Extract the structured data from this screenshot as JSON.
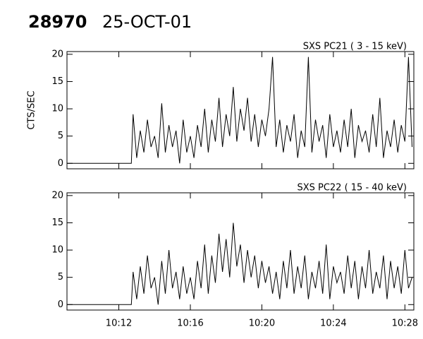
{
  "header": {
    "id": "28970",
    "date": "25-OCT-01"
  },
  "chart_data": [
    {
      "type": "line",
      "label": "SXS PC21  (  3 - 15 keV)",
      "ylabel": "CTS/SEC",
      "xlim": [
        609.1,
        628.5
      ],
      "xticks": [
        612,
        616,
        620,
        624,
        628
      ],
      "ylim": [
        -1,
        20.5
      ],
      "yticks": [
        0,
        5,
        10,
        15,
        20
      ],
      "series": [
        {
          "color": "#000000",
          "x": [
            609.1,
            612.7,
            612.8,
            613,
            613.2,
            613.4,
            613.6,
            613.8,
            614,
            614.2,
            614.4,
            614.6,
            614.8,
            615,
            615.2,
            615.4,
            615.6,
            615.8,
            616,
            616.2,
            616.4,
            616.6,
            616.8,
            617,
            617.2,
            617.4,
            617.6,
            617.8,
            618,
            618.2,
            618.4,
            618.6,
            618.8,
            619,
            619.2,
            619.4,
            619.6,
            619.8,
            620,
            620.2,
            620.4,
            620.6,
            620.8,
            621,
            621.2,
            621.4,
            621.6,
            621.8,
            622,
            622.2,
            622.4,
            622.6,
            622.8,
            623,
            623.2,
            623.4,
            623.6,
            623.8,
            624,
            624.2,
            624.4,
            624.6,
            624.8,
            625,
            625.2,
            625.4,
            625.6,
            625.8,
            626,
            626.2,
            626.4,
            626.6,
            626.8,
            627,
            627.2,
            627.4,
            627.6,
            627.8,
            628,
            628.2,
            628.4
          ],
          "values": [
            0,
            0,
            9,
            1,
            6,
            2,
            8,
            3,
            5,
            1,
            11,
            2,
            7,
            3,
            6,
            0,
            8,
            2,
            5,
            1,
            7,
            3,
            10,
            2,
            8,
            4,
            12,
            3,
            9,
            5,
            14,
            4,
            10,
            6,
            12,
            4,
            9,
            3,
            8,
            5,
            10,
            19.5,
            3,
            8,
            2,
            7,
            4,
            9,
            1,
            6,
            3,
            19.5,
            2,
            8,
            4,
            7,
            1,
            9,
            3,
            6,
            2,
            8,
            3,
            10,
            1,
            7,
            4,
            6,
            2,
            9,
            3,
            12,
            1,
            6,
            3,
            8,
            2,
            7,
            4,
            19.5,
            3
          ]
        }
      ]
    },
    {
      "type": "line",
      "label": "SXS PC22  ( 15 - 40 keV)",
      "xlim": [
        609.1,
        628.5
      ],
      "xticks": [
        {
          "value": 612,
          "label": "10:12"
        },
        {
          "value": 616,
          "label": "10:16"
        },
        {
          "value": 620,
          "label": "10:20"
        },
        {
          "value": 624,
          "label": "10:24"
        },
        {
          "value": 628,
          "label": "10:28"
        }
      ],
      "ylim": [
        -1,
        20.5
      ],
      "yticks": [
        0,
        5,
        10,
        15,
        20
      ],
      "series": [
        {
          "color": "#000000",
          "x": [
            609.1,
            612.7,
            612.8,
            613,
            613.2,
            613.4,
            613.6,
            613.8,
            614,
            614.2,
            614.4,
            614.6,
            614.8,
            615,
            615.2,
            615.4,
            615.6,
            615.8,
            616,
            616.2,
            616.4,
            616.6,
            616.8,
            617,
            617.2,
            617.4,
            617.6,
            617.8,
            618,
            618.2,
            618.4,
            618.6,
            618.8,
            619,
            619.2,
            619.4,
            619.6,
            619.8,
            620,
            620.2,
            620.4,
            620.6,
            620.8,
            621,
            621.2,
            621.4,
            621.6,
            621.8,
            622,
            622.2,
            622.4,
            622.6,
            622.8,
            623,
            623.2,
            623.4,
            623.6,
            623.8,
            624,
            624.2,
            624.4,
            624.6,
            624.8,
            625,
            625.2,
            625.4,
            625.6,
            625.8,
            626,
            626.2,
            626.4,
            626.6,
            626.8,
            627,
            627.2,
            627.4,
            627.6,
            627.8,
            628,
            628.2,
            628.4
          ],
          "values": [
            0,
            0,
            6,
            1,
            7,
            2,
            9,
            3,
            5,
            0,
            8,
            2,
            10,
            3,
            6,
            1,
            7,
            2,
            5,
            1,
            8,
            3,
            11,
            2,
            9,
            4,
            13,
            6,
            12,
            5,
            15,
            7,
            11,
            4,
            10,
            5,
            9,
            3,
            8,
            4,
            7,
            2,
            6,
            1,
            8,
            3,
            10,
            2,
            7,
            3,
            9,
            1,
            6,
            3,
            8,
            2,
            11,
            1,
            7,
            4,
            6,
            2,
            9,
            3,
            8,
            1,
            7,
            3,
            10,
            2,
            6,
            3,
            9,
            1,
            8,
            3,
            7,
            2,
            10,
            3,
            5
          ]
        }
      ]
    }
  ]
}
